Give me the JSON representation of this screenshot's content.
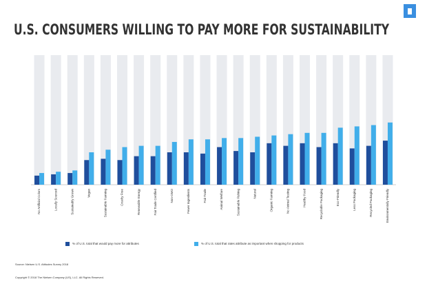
{
  "chart_data": {
    "type": "bar",
    "title": "U.S. CONSUMERS WILLING TO PAY MORE FOR SUSTAINABILITY",
    "categories": [
      "No Artificial Colors",
      "Locally Sourced",
      "Sustainably Grown",
      "Vegan",
      "Sustainable Farming",
      "Cruelty Free",
      "Renewable Energy",
      "Fair Trade Certified",
      "Non-GMO",
      "Fewer Ingredients",
      "Fair Trade",
      "Animal Welfare",
      "Sustainable Fishing",
      "Natural",
      "Organic Farming",
      "No Animal Testing",
      "Healthy Food",
      "Recyclable Packaging",
      "Eco-Friendly",
      "Less Packaging",
      "Recycled Packaging",
      "Environmentally Friendly"
    ],
    "series": [
      {
        "name": "% of U.S. total that would pay more for attributes",
        "color": "#1f4e9c",
        "values": [
          7,
          8,
          9,
          19,
          20,
          19,
          22,
          22,
          25,
          25,
          24,
          29,
          26,
          25,
          32,
          30,
          32,
          29,
          32,
          28,
          30,
          34
        ]
      },
      {
        "name": "% of U.S. total that rates attribute as important when shopping for products",
        "color": "#41aeea",
        "values": [
          9,
          10,
          11,
          25,
          27,
          29,
          30,
          30,
          33,
          35,
          35,
          36,
          36,
          37,
          38,
          39,
          40,
          40,
          44,
          45,
          46,
          48
        ]
      }
    ],
    "ylim": [
      0,
      100
    ],
    "source": "Source: Nielsen U.S. Attitudes Survey 2018",
    "copyright": "Copyright © 2018 The Nielsen Company (US), LLC. All Rights Reserved."
  }
}
